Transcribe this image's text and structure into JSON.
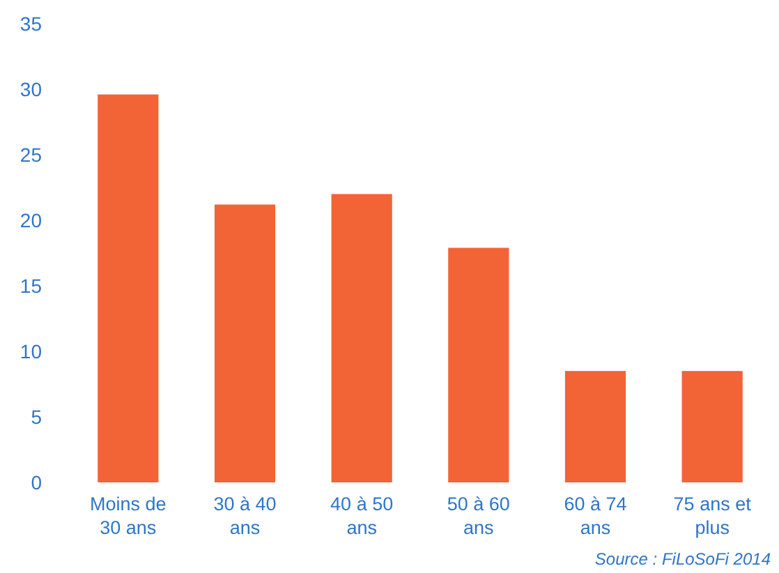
{
  "chart_data": {
    "type": "bar",
    "categories": [
      "Moins de 30 ans",
      "30 à 40 ans",
      "40 à 50 ans",
      "50 à 60 ans",
      "60 à 74 ans",
      "75 ans et plus"
    ],
    "values": [
      29.6,
      21.2,
      22.0,
      17.9,
      8.5,
      8.5
    ],
    "color": "#f26336",
    "ylim": [
      0,
      35
    ],
    "yticks": [
      0,
      5,
      10,
      15,
      20,
      25,
      30,
      35
    ],
    "annotations": [
      "Source : FiLoSoFi 2014"
    ]
  }
}
